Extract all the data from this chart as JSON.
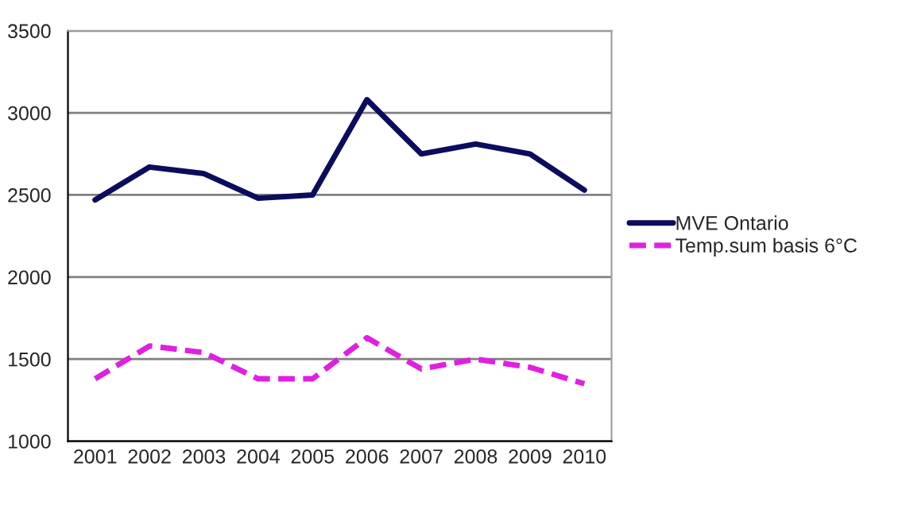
{
  "chart_data": {
    "type": "line",
    "categories": [
      "2001",
      "2002",
      "2003",
      "2004",
      "2005",
      "2006",
      "2007",
      "2008",
      "2009",
      "2010"
    ],
    "series": [
      {
        "name": "MVE Ontario",
        "color": "#0c0c5e",
        "line_style": "solid",
        "values": [
          2470,
          2670,
          2630,
          2480,
          2500,
          3080,
          2750,
          2810,
          2750,
          2530
        ]
      },
      {
        "name": "Temp.sum basis 6°C",
        "color": "#e020e0",
        "line_style": "dashed",
        "values": [
          1380,
          1580,
          1540,
          1380,
          1380,
          1630,
          1440,
          1500,
          1450,
          1350
        ]
      }
    ],
    "ylim": [
      1000,
      3500
    ],
    "yticks": [
      1000,
      1500,
      2000,
      2500,
      3000,
      3500
    ],
    "grid": "y",
    "legend": "right",
    "marker": "none"
  }
}
